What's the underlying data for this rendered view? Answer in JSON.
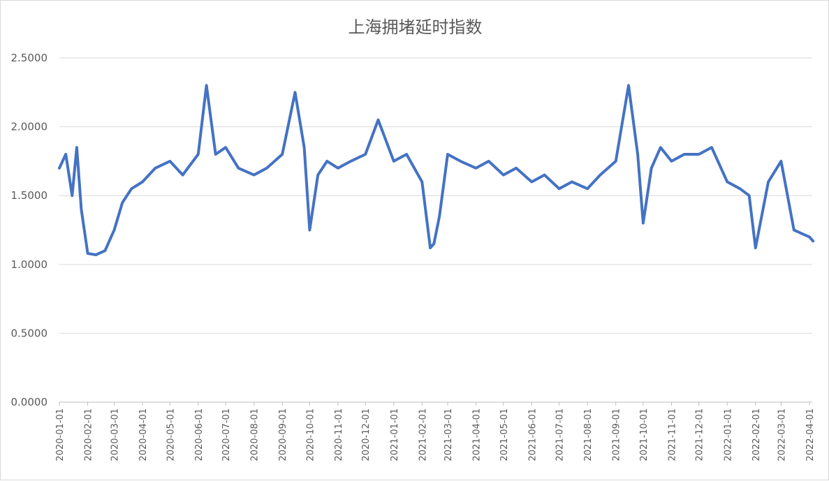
{
  "chart_data": {
    "type": "line",
    "title": "上海拥堵延时指数",
    "xlabel": "",
    "ylabel": "",
    "ylim": [
      0,
      2.5
    ],
    "yticks": [
      "0.0000",
      "0.5000",
      "1.0000",
      "1.5000",
      "2.0000",
      "2.5000"
    ],
    "xticks": [
      "2020-01-01",
      "2020-02-01",
      "2020-03-01",
      "2020-04-01",
      "2020-05-01",
      "2020-06-01",
      "2020-07-01",
      "2020-08-01",
      "2020-09-01",
      "2020-10-01",
      "2020-11-01",
      "2020-12-01",
      "2021-01-01",
      "2021-02-01",
      "2021-03-01",
      "2021-04-01",
      "2021-05-01",
      "2021-06-01",
      "2021-07-01",
      "2021-08-01",
      "2021-09-01",
      "2021-10-01",
      "2021-11-01",
      "2021-12-01",
      "2022-01-01",
      "2022-02-01",
      "2022-03-01",
      "2022-04-01"
    ],
    "grid": true,
    "legend": "none",
    "line_color": "#4472C4",
    "series": [
      {
        "x": [
          "2020-01-01",
          "2020-01-08",
          "2020-01-15",
          "2020-01-20",
          "2020-01-25",
          "2020-02-01",
          "2020-02-10",
          "2020-02-20",
          "2020-03-01",
          "2020-03-10",
          "2020-03-20",
          "2020-04-01",
          "2020-04-15",
          "2020-05-01",
          "2020-05-15",
          "2020-06-01",
          "2020-06-10",
          "2020-06-20",
          "2020-07-01",
          "2020-07-15",
          "2020-08-01",
          "2020-08-15",
          "2020-09-01",
          "2020-09-15",
          "2020-09-25",
          "2020-10-01",
          "2020-10-10",
          "2020-10-20",
          "2020-11-01",
          "2020-11-15",
          "2020-12-01",
          "2020-12-15",
          "2021-01-01",
          "2021-01-15",
          "2021-02-01",
          "2021-02-10",
          "2021-02-14",
          "2021-02-20",
          "2021-03-01",
          "2021-03-15",
          "2021-04-01",
          "2021-04-15",
          "2021-05-01",
          "2021-05-15",
          "2021-06-01",
          "2021-06-15",
          "2021-07-01",
          "2021-07-15",
          "2021-08-01",
          "2021-08-15",
          "2021-09-01",
          "2021-09-15",
          "2021-09-25",
          "2021-10-01",
          "2021-10-10",
          "2021-10-20",
          "2021-11-01",
          "2021-11-15",
          "2021-12-01",
          "2021-12-15",
          "2022-01-01",
          "2022-01-15",
          "2022-01-25",
          "2022-02-01",
          "2022-02-15",
          "2022-03-01",
          "2022-03-15",
          "2022-04-01",
          "2022-04-05"
        ],
        "values": [
          1.7,
          1.8,
          1.5,
          1.85,
          1.4,
          1.08,
          1.07,
          1.1,
          1.25,
          1.45,
          1.55,
          1.6,
          1.7,
          1.75,
          1.65,
          1.8,
          2.3,
          1.8,
          1.85,
          1.7,
          1.65,
          1.7,
          1.8,
          2.25,
          1.85,
          1.25,
          1.65,
          1.75,
          1.7,
          1.75,
          1.8,
          2.05,
          1.75,
          1.8,
          1.6,
          1.12,
          1.15,
          1.35,
          1.8,
          1.75,
          1.7,
          1.75,
          1.65,
          1.7,
          1.6,
          1.65,
          1.55,
          1.6,
          1.55,
          1.65,
          1.75,
          2.3,
          1.8,
          1.3,
          1.7,
          1.85,
          1.75,
          1.8,
          1.8,
          1.85,
          1.6,
          1.55,
          1.5,
          1.12,
          1.6,
          1.75,
          1.25,
          1.2,
          1.17
        ]
      }
    ]
  }
}
